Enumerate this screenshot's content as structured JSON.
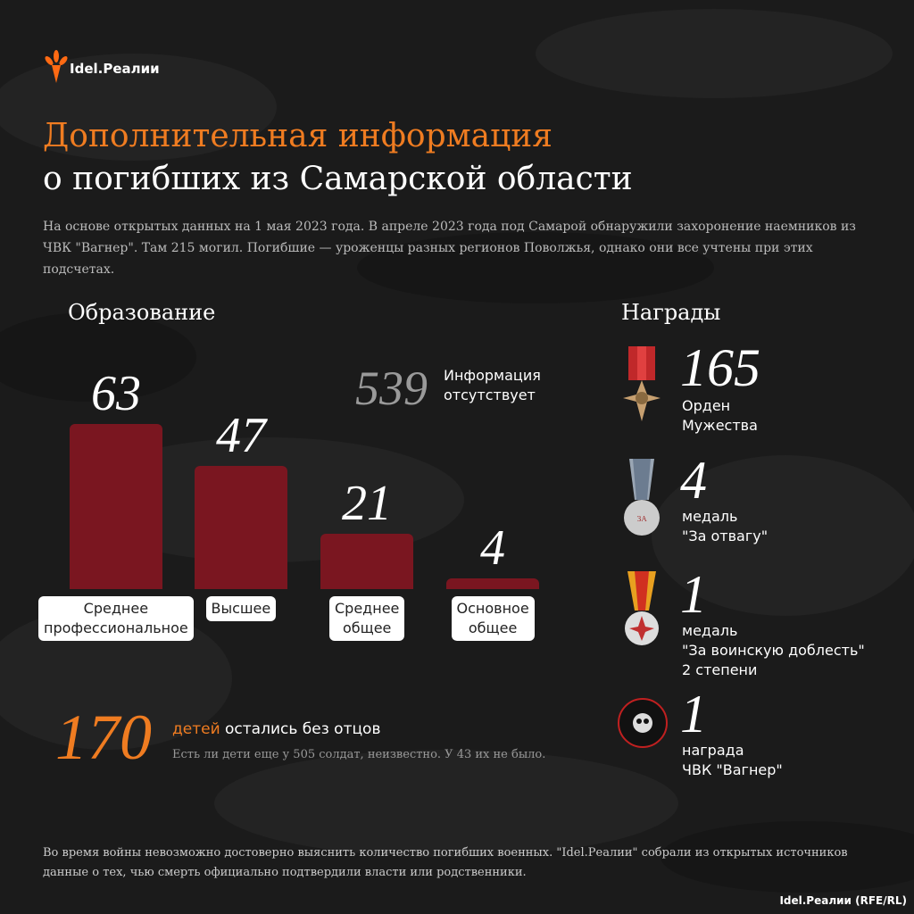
{
  "brand": "Idel.Реалии",
  "title_line1": "Дополнительная информация",
  "title_line2": "о погибших из Самарской области",
  "intro": "На основе открытых данных на 1 мая 2023 года. В апреле 2023 года под Самарой обнаружили захоронение наемников из ЧВК \"Вагнер\". Там 215 могил. Погибшие — уроженцы разных регионов Поволжья, однако они все учтены при этих подсчетах.",
  "chart_data": {
    "type": "bar",
    "title": "Образование",
    "categories": [
      "Среднее\nпрофессиональное",
      "Высшее",
      "Среднее\nобщее",
      "Основное\nобщее"
    ],
    "values": [
      63,
      47,
      21,
      4
    ],
    "color": "#7a1620"
  },
  "missing": {
    "value": 539,
    "label": "Информация\nотсутствует"
  },
  "children": {
    "value": 170,
    "highlight": "детей",
    "text": "остались без отцов",
    "note": "Есть ли дети еще у 505 солдат, неизвестно. У 43 их не было."
  },
  "awards": {
    "title": "Награды",
    "items": [
      {
        "value": 165,
        "label": "Орден\nМужества"
      },
      {
        "value": 4,
        "label": "медаль\n\"За отвагу\""
      },
      {
        "value": 1,
        "label": "медаль\n\"За воинскую доблесть\"\n2 степени"
      },
      {
        "value": 1,
        "label": "награда\nЧВК \"Вагнер\""
      }
    ]
  },
  "footer": "Во время войны невозможно достоверно выяснить количество погибших военных. \"Idel.Реалии\" собрали из открытых источников данные о тех, чью смерть официально подтвердили власти или родственники.",
  "credit": "Idel.Реалии (RFE/RL)"
}
